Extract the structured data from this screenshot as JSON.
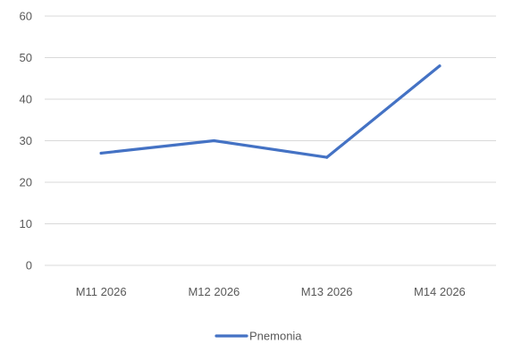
{
  "chart_data": {
    "type": "line",
    "categories": [
      "M11 2026",
      "M12 2026",
      "M13 2026",
      "M14 2026"
    ],
    "series": [
      {
        "name": "Pnemonia",
        "values": [
          27,
          30,
          26,
          48
        ],
        "color": "#4472C4"
      }
    ],
    "ylim": [
      0,
      60
    ],
    "yticks": [
      0,
      10,
      20,
      30,
      40,
      50,
      60
    ],
    "grid": true,
    "legend": "bottom",
    "gridline_color": "#D9D9D9",
    "tick_label_color": "#595959"
  }
}
